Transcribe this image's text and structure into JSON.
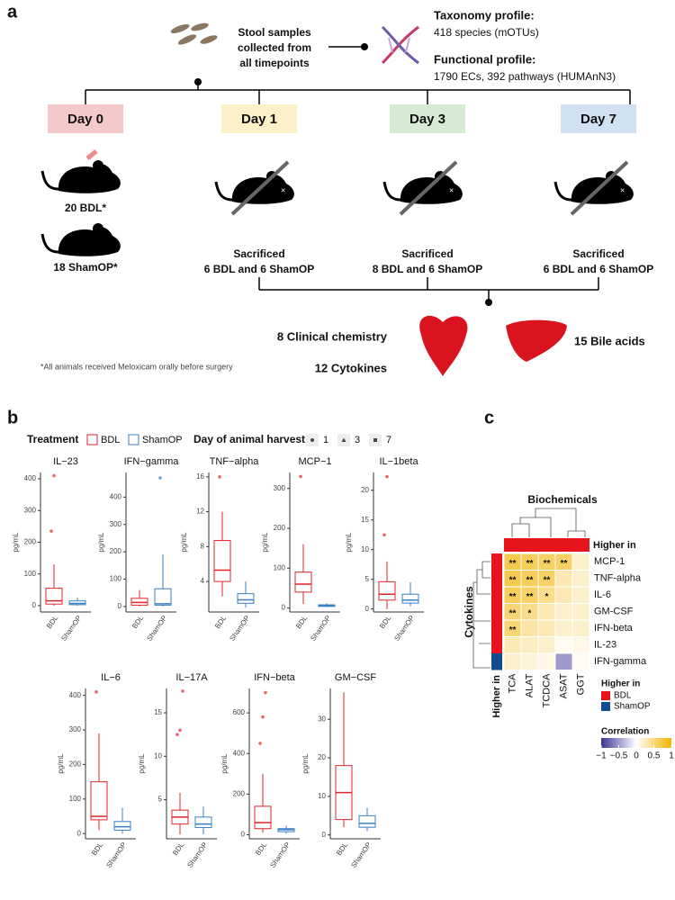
{
  "panel_a": {
    "label": "a",
    "stool": [
      "Stool samples",
      "collected from",
      "all timepoints"
    ],
    "taxonomy_title": "Taxonomy profile:",
    "taxonomy_text": "418 species (mOTUs)",
    "functional_title": "Functional profile:",
    "functional_text": "1790 ECs, 392 pathways (HUMAnN3)",
    "days": [
      {
        "label": "Day 0",
        "color": "#f4c9c9"
      },
      {
        "label": "Day 1",
        "color": "#fcf0c8"
      },
      {
        "label": "Day 3",
        "color": "#d7ead3"
      },
      {
        "label": "Day 7",
        "color": "#d0e1f2"
      }
    ],
    "day0_groups": [
      "20 BDL*",
      "18 ShamOP*"
    ],
    "sacrificed": [
      [
        "Sacrificed",
        "6 BDL and 6 ShamOP"
      ],
      [
        "Sacrificed",
        "8 BDL and 6 ShamOP"
      ],
      [
        "Sacrificed",
        "6 BDL and 6 ShamOP"
      ]
    ],
    "clinical": "8 Clinical chemistry",
    "cytokines": "12 Cytokines",
    "bile": "15 Bile acids",
    "footnote": "*All animals received Meloxicam orally before surgery"
  },
  "panel_b": {
    "label": "b",
    "legend_title": "Treatment",
    "groups": [
      {
        "name": "BDL",
        "color": "#e0262b"
      },
      {
        "name": "ShamOP",
        "color": "#3a7fc1"
      }
    ],
    "day_title": "Day of animal harvest",
    "days": [
      "1",
      "3",
      "7"
    ],
    "y_label": "pg/mL",
    "panels": [
      {
        "title": "IL−23",
        "ylim": [
          -20,
          420
        ],
        "yticks": [
          0,
          100,
          200,
          300,
          400
        ],
        "boxes": [
          {
            "whisker_low": 0,
            "q1": 5,
            "median": 15,
            "q3": 55,
            "whisker_high": 130,
            "outliers": [
              235,
              410
            ]
          },
          {
            "whisker_low": 0,
            "q1": 3,
            "median": 7,
            "q3": 15,
            "whisker_high": 25,
            "outliers": []
          }
        ]
      },
      {
        "title": "IFN−gamma",
        "ylim": [
          -20,
          490
        ],
        "yticks": [
          0,
          100,
          200,
          300,
          400
        ],
        "boxes": [
          {
            "whisker_low": 0,
            "q1": 5,
            "median": 15,
            "q3": 30,
            "whisker_high": 60,
            "outliers": []
          },
          {
            "whisker_low": 0,
            "q1": 5,
            "median": 10,
            "q3": 65,
            "whisker_high": 190,
            "outliers": [
              470
            ]
          }
        ]
      },
      {
        "title": "TNF−alpha",
        "ylim": [
          0.5,
          16.5
        ],
        "yticks": [
          4,
          8,
          12,
          16
        ],
        "boxes": [
          {
            "whisker_low": 2.3,
            "q1": 4,
            "median": 5.3,
            "q3": 8.7,
            "whisker_high": 12,
            "outliers": [
              16
            ]
          },
          {
            "whisker_low": 1,
            "q1": 1.5,
            "median": 1.9,
            "q3": 2.6,
            "whisker_high": 4,
            "outliers": []
          }
        ]
      },
      {
        "title": "MCP−1",
        "ylim": [
          -10,
          340
        ],
        "yticks": [
          0,
          100,
          200,
          300
        ],
        "boxes": [
          {
            "whisker_low": 10,
            "q1": 40,
            "median": 60,
            "q3": 90,
            "whisker_high": 160,
            "outliers": [
              330
            ]
          },
          {
            "whisker_low": 2,
            "q1": 4,
            "median": 6,
            "q3": 8,
            "whisker_high": 12,
            "outliers": []
          }
        ]
      },
      {
        "title": "IL−1beta",
        "ylim": [
          -0.5,
          23
        ],
        "yticks": [
          0,
          5,
          10,
          15,
          20
        ],
        "boxes": [
          {
            "whisker_low": 0,
            "q1": 1.5,
            "median": 2.5,
            "q3": 4.6,
            "whisker_high": 8,
            "outliers": [
              12.5,
              22.3
            ]
          },
          {
            "whisker_low": 0.5,
            "q1": 1,
            "median": 1.5,
            "q3": 2.5,
            "whisker_high": 4.5,
            "outliers": []
          }
        ]
      },
      {
        "title": "IL−6",
        "ylim": [
          -15,
          420
        ],
        "yticks": [
          0,
          100,
          200,
          300,
          400
        ],
        "boxes": [
          {
            "whisker_low": 10,
            "q1": 40,
            "median": 50,
            "q3": 150,
            "whisker_high": 290,
            "outliers": [
              410
            ]
          },
          {
            "whisker_low": 0,
            "q1": 10,
            "median": 20,
            "q3": 35,
            "whisker_high": 75,
            "outliers": []
          }
        ]
      },
      {
        "title": "IL−17A",
        "ylim": [
          0.5,
          17.8
        ],
        "yticks": [
          5,
          10,
          15
        ],
        "boxes": [
          {
            "whisker_low": 1,
            "q1": 2.2,
            "median": 3,
            "q3": 3.8,
            "whisker_high": 5.8,
            "outliers": [
              12.5,
              13,
              17.5
            ]
          },
          {
            "whisker_low": 1,
            "q1": 1.8,
            "median": 2.2,
            "q3": 3,
            "whisker_high": 4.2,
            "outliers": []
          }
        ]
      },
      {
        "title": "IFN−beta",
        "ylim": [
          -20,
          720
        ],
        "yticks": [
          0,
          200,
          400,
          600
        ],
        "boxes": [
          {
            "whisker_low": 10,
            "q1": 30,
            "median": 60,
            "q3": 140,
            "whisker_high": 300,
            "outliers": [
              450,
              580,
              700
            ]
          },
          {
            "whisker_low": 5,
            "q1": 15,
            "median": 25,
            "q3": 30,
            "whisker_high": 45,
            "outliers": []
          }
        ]
      },
      {
        "title": "GM−CSF",
        "ylim": [
          -1,
          38
        ],
        "yticks": [
          0,
          10,
          20,
          30
        ],
        "boxes": [
          {
            "whisker_low": 2,
            "q1": 4,
            "median": 11,
            "q3": 18,
            "whisker_high": 37,
            "outliers": []
          },
          {
            "whisker_low": 1,
            "q1": 2,
            "median": 3,
            "q3": 5,
            "whisker_high": 7,
            "outliers": []
          }
        ]
      }
    ]
  },
  "panel_c": {
    "label": "c",
    "col_title": "Biochemicals",
    "row_title": "Cytokines",
    "top_annotation": "Higher in",
    "left_annotation": "Higher in",
    "rows": [
      "MCP-1",
      "TNF-alpha",
      "IL-6",
      "GM-CSF",
      "IFN-beta",
      "IL-23",
      "IFN-gamma"
    ],
    "cols": [
      "TCA",
      "ALAT",
      "TCDCA",
      "ASAT",
      "GGT"
    ],
    "row_group": [
      "BDL",
      "BDL",
      "BDL",
      "BDL",
      "BDL",
      "BDL",
      "ShamOP"
    ],
    "values": [
      [
        0.7,
        0.65,
        0.6,
        0.6,
        0.2
      ],
      [
        0.7,
        0.65,
        0.6,
        0.3,
        0.2
      ],
      [
        0.65,
        0.6,
        0.45,
        0.3,
        0.2
      ],
      [
        0.55,
        0.45,
        0.3,
        0.2,
        0.2
      ],
      [
        0.55,
        0.35,
        0.3,
        0.2,
        0.2
      ],
      [
        0.3,
        0.25,
        0.2,
        0.05,
        0.1
      ],
      [
        0.2,
        0.15,
        0.1,
        -0.5,
        0.05
      ]
    ],
    "stars": [
      [
        "**",
        "**",
        "**",
        "**",
        null
      ],
      [
        "**",
        "**",
        "**",
        null,
        null
      ],
      [
        "**",
        "**",
        "*",
        null,
        null
      ],
      [
        "**",
        "*",
        null,
        null,
        null
      ],
      [
        "**",
        null,
        null,
        null,
        null
      ],
      [
        null,
        null,
        null,
        null,
        null
      ],
      [
        null,
        null,
        null,
        null,
        null
      ]
    ],
    "legend_group_title": "Higher in",
    "legend_groups": [
      {
        "name": "BDL",
        "color": "#e8141c"
      },
      {
        "name": "ShamOP",
        "color": "#114c8f"
      }
    ],
    "legend_scale_title": "Correlation",
    "colormap": [
      "#3b3596",
      "#ffffff",
      "#f2b300"
    ],
    "clim": [
      -1,
      1
    ],
    "scale_ticks": [
      {
        "value": -1,
        "label": "−1"
      },
      {
        "value": -0.5,
        "label": "−0.5"
      },
      0,
      0.5,
      1
    ]
  }
}
